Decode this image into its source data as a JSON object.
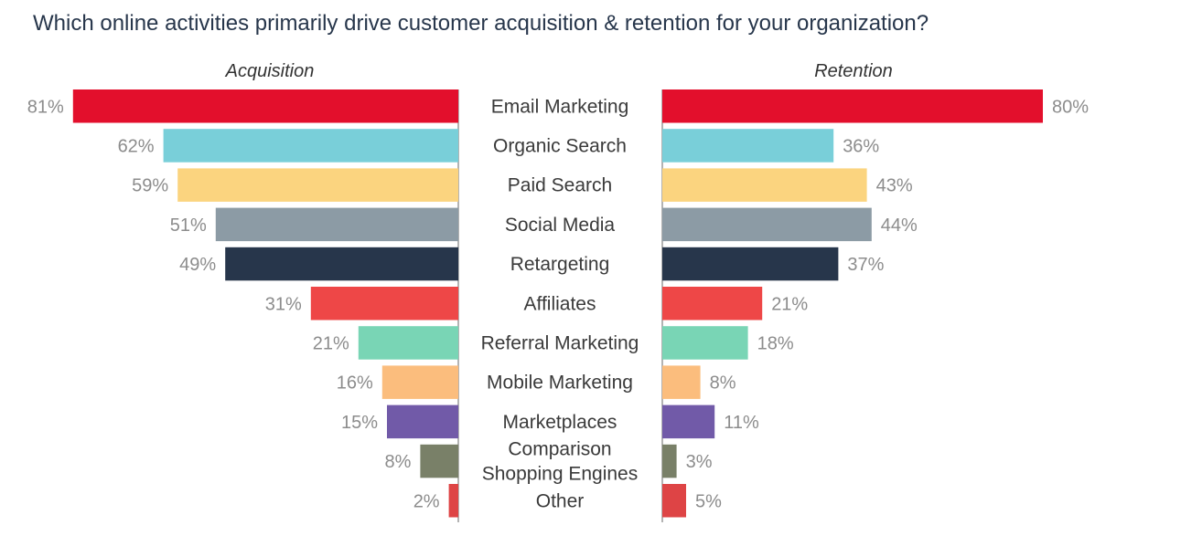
{
  "chart_data": {
    "type": "bar",
    "title": "Which online activities primarily drive customer acquisition & retention for your organization?",
    "unit": "%",
    "categories": [
      [
        "Email Marketing"
      ],
      [
        "Organic Search"
      ],
      [
        "Paid Search"
      ],
      [
        "Social Media"
      ],
      [
        "Retargeting"
      ],
      [
        "Affiliates"
      ],
      [
        "Referral Marketing"
      ],
      [
        "Mobile Marketing"
      ],
      [
        "Marketplaces"
      ],
      [
        "Comparison",
        "Shopping Engines"
      ],
      [
        "Other"
      ]
    ],
    "colors": [
      "#e30f2c",
      "#79cfd9",
      "#fbd47f",
      "#8c9ba5",
      "#27364b",
      "#ee4747",
      "#79d5b5",
      "#fbbd7d",
      "#715aa8",
      "#798068",
      "#de4445"
    ],
    "series": [
      {
        "name": "Acquisition",
        "values": [
          81,
          62,
          59,
          51,
          49,
          31,
          21,
          16,
          15,
          8,
          2
        ]
      },
      {
        "name": "Retention",
        "values": [
          80,
          36,
          43,
          44,
          37,
          21,
          18,
          8,
          11,
          3,
          5
        ]
      }
    ],
    "xlim": [
      0,
      100
    ],
    "grid": false,
    "legend": "none"
  }
}
